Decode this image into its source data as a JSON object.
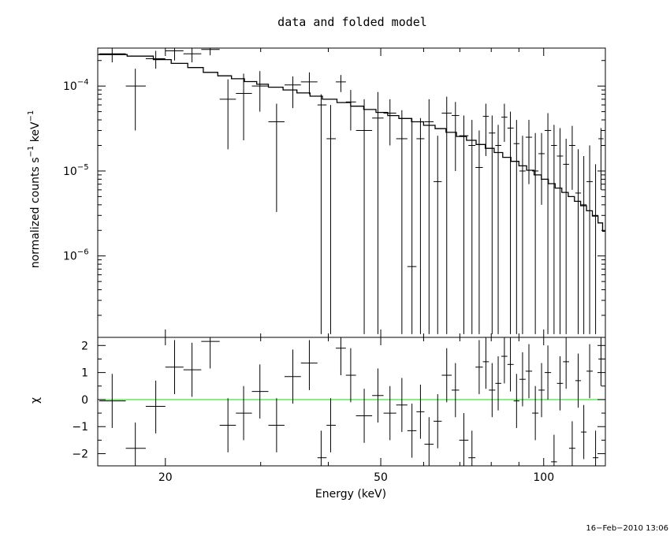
{
  "chart_data": [
    {
      "type": "scatter",
      "title": "data and folded model",
      "xlabel": "Energy (keV)",
      "ylabel": "normalized counts s-1 keV-1",
      "xscale": "log",
      "yscale": "log",
      "xlim": [
        15,
        130
      ],
      "ylim": [
        1.1e-07,
        0.00028
      ],
      "xticks": [
        {
          "v": 20,
          "label": "20"
        },
        {
          "v": 50,
          "label": "50"
        },
        {
          "v": 100,
          "label": "100"
        }
      ],
      "yticks": [
        {
          "v": 0.0001,
          "exp": "−4"
        },
        {
          "v": 1e-05,
          "exp": "−5"
        },
        {
          "v": 1e-06,
          "exp": "−6"
        }
      ],
      "data": [
        {
          "x": 15.95,
          "xl": 15.1,
          "xh": 16.9,
          "y": 0.00024,
          "yl": 0.00019,
          "yh": 0.00028
        },
        {
          "x": 17.6,
          "xl": 16.9,
          "xh": 18.4,
          "y": 0.0001,
          "yl": 3e-05,
          "yh": 0.00016
        },
        {
          "x": 19.2,
          "xl": 18.4,
          "xh": 20.0,
          "y": 0.00021,
          "yl": 0.00016,
          "yh": 0.00026
        },
        {
          "x": 20.8,
          "xl": 20.0,
          "xh": 21.6,
          "y": 0.00026,
          "yl": 0.0002,
          "yh": 0.00028
        },
        {
          "x": 22.4,
          "xl": 21.6,
          "xh": 23.3,
          "y": 0.00024,
          "yl": 0.00019,
          "yh": 0.00028
        },
        {
          "x": 24.2,
          "xl": 23.3,
          "xh": 25.2,
          "y": 0.00027,
          "yl": 0.00023,
          "yh": 0.00028
        },
        {
          "x": 26.1,
          "xl": 25.2,
          "xh": 27.0,
          "y": 7e-05,
          "yl": 1.8e-05,
          "yh": 0.00012
        },
        {
          "x": 27.9,
          "xl": 27.0,
          "xh": 28.9,
          "y": 8.2e-05,
          "yl": 2.3e-05,
          "yh": 0.00014
        },
        {
          "x": 29.9,
          "xl": 28.9,
          "xh": 31.0,
          "y": 0.0001,
          "yl": 5e-05,
          "yh": 0.00015
        },
        {
          "x": 32.1,
          "xl": 31.0,
          "xh": 33.2,
          "y": 3.8e-05,
          "yl": 3.3e-06,
          "yh": 6.2e-05
        },
        {
          "x": 34.4,
          "xl": 33.2,
          "xh": 35.6,
          "y": 0.000103,
          "yl": 5.5e-05,
          "yh": 0.00013
        },
        {
          "x": 36.9,
          "xl": 35.6,
          "xh": 38.2,
          "y": 0.000112,
          "yl": 8e-05,
          "yh": 0.000145
        },
        {
          "x": 38.8,
          "xl": 38.2,
          "xh": 39.7,
          "y": 6e-05,
          "yl": 1.2e-07,
          "yh": 8e-05
        },
        {
          "x": 40.4,
          "xl": 39.7,
          "xh": 41.3,
          "y": 2.4e-05,
          "yl": 1.2e-07,
          "yh": 6e-05
        },
        {
          "x": 42.2,
          "xl": 41.3,
          "xh": 43.1,
          "y": 0.000112,
          "yl": 8.5e-05,
          "yh": 0.000135
        },
        {
          "x": 44.0,
          "xl": 43.1,
          "xh": 45.0,
          "y": 6.5e-05,
          "yl": 3e-05,
          "yh": 9e-05
        },
        {
          "x": 46.6,
          "xl": 45.0,
          "xh": 48.2,
          "y": 3e-05,
          "yl": 1.2e-07,
          "yh": 7e-05
        },
        {
          "x": 49.4,
          "xl": 48.2,
          "xh": 50.6,
          "y": 4.2e-05,
          "yl": 1.2e-07,
          "yh": 8.5e-05
        },
        {
          "x": 52.0,
          "xl": 50.6,
          "xh": 53.4,
          "y": 4.8e-05,
          "yl": 2e-05,
          "yh": 7e-05
        },
        {
          "x": 54.7,
          "xl": 53.4,
          "xh": 56.0,
          "y": 2.4e-05,
          "yl": 1.2e-07,
          "yh": 5.2e-05
        },
        {
          "x": 57.1,
          "xl": 56.0,
          "xh": 58.2,
          "y": 7.5e-07,
          "yl": 1.2e-07,
          "yh": 4.2e-05
        },
        {
          "x": 59.2,
          "xl": 58.2,
          "xh": 60.2,
          "y": 2.4e-05,
          "yl": 1.2e-07,
          "yh": 4.2e-05
        },
        {
          "x": 61.4,
          "xl": 60.2,
          "xh": 62.6,
          "y": 3.8e-05,
          "yl": 1.2e-07,
          "yh": 7e-05
        },
        {
          "x": 63.7,
          "xl": 62.6,
          "xh": 64.8,
          "y": 7.5e-06,
          "yl": 1.2e-07,
          "yh": 2.6e-05
        },
        {
          "x": 66.2,
          "xl": 64.8,
          "xh": 67.6,
          "y": 4.8e-05,
          "yl": 1.2e-07,
          "yh": 7.5e-05
        },
        {
          "x": 68.7,
          "xl": 67.6,
          "xh": 69.8,
          "y": 4.5e-05,
          "yl": 1e-05,
          "yh": 6.5e-05
        },
        {
          "x": 71.2,
          "xl": 69.8,
          "xh": 72.6,
          "y": 2.6e-05,
          "yl": 1.2e-07,
          "yh": 4.5e-05
        },
        {
          "x": 73.7,
          "xl": 72.6,
          "xh": 74.8,
          "y": 2e-05,
          "yl": 1.2e-07,
          "yh": 4e-05
        },
        {
          "x": 76.0,
          "xl": 74.8,
          "xh": 77.2,
          "y": 1.1e-05,
          "yl": 1.2e-07,
          "yh": 3e-05
        },
        {
          "x": 78.2,
          "xl": 77.2,
          "xh": 79.2,
          "y": 4.4e-05,
          "yl": 1.5e-05,
          "yh": 6.2e-05
        },
        {
          "x": 80.3,
          "xl": 79.2,
          "xh": 81.4,
          "y": 2.8e-05,
          "yl": 1.2e-07,
          "yh": 4.5e-05
        },
        {
          "x": 82.4,
          "xl": 81.4,
          "xh": 83.5,
          "y": 2e-05,
          "yl": 1.2e-07,
          "yh": 3.5e-05
        },
        {
          "x": 84.6,
          "xl": 83.5,
          "xh": 85.7,
          "y": 4.3e-05,
          "yl": 2.2e-05,
          "yh": 6.2e-05
        },
        {
          "x": 86.8,
          "xl": 85.7,
          "xh": 88.0,
          "y": 3.2e-05,
          "yl": 1.2e-07,
          "yh": 5e-05
        },
        {
          "x": 89.1,
          "xl": 88.0,
          "xh": 90.2,
          "y": 2.1e-05,
          "yl": 1.2e-07,
          "yh": 4e-05
        },
        {
          "x": 91.4,
          "xl": 90.2,
          "xh": 92.6,
          "y": 1e-05,
          "yl": 1.2e-07,
          "yh": 2.6e-05
        },
        {
          "x": 93.9,
          "xl": 92.6,
          "xh": 95.2,
          "y": 2.5e-05,
          "yl": 7e-06,
          "yh": 4e-05
        },
        {
          "x": 96.5,
          "xl": 95.2,
          "xh": 97.8,
          "y": 1e-05,
          "yl": 1.2e-07,
          "yh": 2.8e-05
        },
        {
          "x": 99.1,
          "xl": 97.8,
          "xh": 100.4,
          "y": 1.6e-05,
          "yl": 4e-06,
          "yh": 2.8e-05
        },
        {
          "x": 101.8,
          "xl": 100.4,
          "xh": 103.2,
          "y": 3e-05,
          "yl": 1.2e-07,
          "yh": 4.8e-05
        },
        {
          "x": 104.5,
          "xl": 103.2,
          "xh": 105.8,
          "y": 2e-05,
          "yl": 1.2e-07,
          "yh": 3.5e-05
        },
        {
          "x": 107.2,
          "xl": 105.8,
          "xh": 108.6,
          "y": 1.5e-05,
          "yl": 1.2e-07,
          "yh": 3.2e-05
        },
        {
          "x": 110.0,
          "xl": 108.6,
          "xh": 111.4,
          "y": 1.2e-05,
          "yl": 1.2e-07,
          "yh": 2.4e-05
        },
        {
          "x": 112.9,
          "xl": 111.4,
          "xh": 114.4,
          "y": 2e-05,
          "yl": 6e-06,
          "yh": 3.4e-05
        },
        {
          "x": 115.8,
          "xl": 114.4,
          "xh": 117.2,
          "y": 5.5e-06,
          "yl": 1.2e-07,
          "yh": 1.8e-05
        },
        {
          "x": 118.6,
          "xl": 117.2,
          "xh": 120.0,
          "y": 4e-06,
          "yl": 1.2e-07,
          "yh": 1.5e-05
        },
        {
          "x": 121.6,
          "xl": 120.0,
          "xh": 123.2,
          "y": 7.5e-06,
          "yl": 1.2e-07,
          "yh": 2e-05
        },
        {
          "x": 124.7,
          "xl": 123.2,
          "xh": 126.2,
          "y": 3e-06,
          "yl": 1.2e-07,
          "yh": 1.2e-05
        },
        {
          "x": 127.6,
          "xl": 126.2,
          "xh": 129.0,
          "y": 2.4e-05,
          "yl": 6e-06,
          "yh": 3.2e-05
        }
      ],
      "model_step": [
        [
          15.0,
          0.000235
        ],
        [
          17.0,
          0.000225
        ],
        [
          19.0,
          0.000205
        ],
        [
          20.5,
          0.000185
        ],
        [
          22.0,
          0.000165
        ],
        [
          23.5,
          0.000145
        ],
        [
          25.0,
          0.000132
        ],
        [
          26.5,
          0.000122
        ],
        [
          28.0,
          0.000113
        ],
        [
          29.5,
          0.000105
        ],
        [
          31.0,
          9.7e-05
        ],
        [
          33.0,
          9e-05
        ],
        [
          35.0,
          8.3e-05
        ],
        [
          37.0,
          7.6e-05
        ],
        [
          39.0,
          7e-05
        ],
        [
          41.5,
          6.4e-05
        ],
        [
          44.0,
          5.8e-05
        ],
        [
          46.5,
          5.3e-05
        ],
        [
          49.0,
          4.9e-05
        ],
        [
          51.5,
          4.5e-05
        ],
        [
          54.0,
          4.15e-05
        ],
        [
          57.0,
          3.8e-05
        ],
        [
          60.0,
          3.45e-05
        ],
        [
          63.0,
          3.15e-05
        ],
        [
          66.0,
          2.85e-05
        ],
        [
          69.0,
          2.55e-05
        ],
        [
          72.0,
          2.3e-05
        ],
        [
          75.0,
          2.05e-05
        ],
        [
          78.0,
          1.85e-05
        ],
        [
          81.0,
          1.65e-05
        ],
        [
          84.0,
          1.45e-05
        ],
        [
          87.0,
          1.3e-05
        ],
        [
          90.0,
          1.15e-05
        ],
        [
          93.0,
          1.02e-05
        ],
        [
          96.0,
          9e-06
        ],
        [
          99.0,
          8e-06
        ],
        [
          102.0,
          7.1e-06
        ],
        [
          105.0,
          6.3e-06
        ],
        [
          108.0,
          5.6e-06
        ],
        [
          111.0,
          5e-06
        ],
        [
          114.0,
          4.4e-06
        ],
        [
          117.0,
          3.9e-06
        ],
        [
          120.0,
          3.4e-06
        ],
        [
          123.0,
          2.95e-06
        ],
        [
          126.0,
          2.45e-06
        ],
        [
          128.5,
          1.95e-06
        ],
        [
          130.0,
          1.95e-06
        ]
      ]
    },
    {
      "type": "scatter",
      "title": "",
      "xlabel": "Energy (keV)",
      "ylabel": "χ",
      "xscale": "log",
      "xlim": [
        15,
        130
      ],
      "ylim": [
        -2.45,
        2.3
      ],
      "xticks": [
        {
          "v": 20,
          "label": "20"
        },
        {
          "v": 50,
          "label": "50"
        },
        {
          "v": 100,
          "label": "100"
        }
      ],
      "yticks": [
        {
          "v": 2,
          "label": "2"
        },
        {
          "v": 1,
          "label": "1"
        },
        {
          "v": 0,
          "label": "0"
        },
        {
          "v": -1,
          "label": "−1"
        },
        {
          "v": -2,
          "label": "−2"
        }
      ],
      "reference_line": {
        "y": 0,
        "color": "#33dd33"
      },
      "data": [
        {
          "x": 15.95,
          "xl": 15.1,
          "xh": 16.9,
          "y": -0.05,
          "yl": -1.05,
          "yh": 0.95
        },
        {
          "x": 17.6,
          "xl": 16.9,
          "xh": 18.4,
          "y": -1.8,
          "yl": -2.45,
          "yh": -0.85
        },
        {
          "x": 19.2,
          "xl": 18.4,
          "xh": 20.0,
          "y": -0.25,
          "yl": -1.25,
          "yh": 0.7
        },
        {
          "x": 20.8,
          "xl": 20.0,
          "xh": 21.6,
          "y": 1.2,
          "yl": 0.2,
          "yh": 2.2
        },
        {
          "x": 22.4,
          "xl": 21.6,
          "xh": 23.3,
          "y": 1.1,
          "yl": 0.1,
          "yh": 2.1
        },
        {
          "x": 24.2,
          "xl": 23.3,
          "xh": 25.2,
          "y": 2.15,
          "yl": 1.15,
          "yh": 2.3
        },
        {
          "x": 26.1,
          "xl": 25.2,
          "xh": 27.0,
          "y": -0.95,
          "yl": -1.95,
          "yh": 0.05
        },
        {
          "x": 27.9,
          "xl": 27.0,
          "xh": 28.9,
          "y": -0.5,
          "yl": -1.5,
          "yh": 0.5
        },
        {
          "x": 29.9,
          "xl": 28.9,
          "xh": 31.0,
          "y": 0.3,
          "yl": -0.7,
          "yh": 1.3
        },
        {
          "x": 32.1,
          "xl": 31.0,
          "xh": 33.2,
          "y": -0.95,
          "yl": -1.95,
          "yh": 0.05
        },
        {
          "x": 34.4,
          "xl": 33.2,
          "xh": 35.6,
          "y": 0.85,
          "yl": -0.15,
          "yh": 1.85
        },
        {
          "x": 36.9,
          "xl": 35.6,
          "xh": 38.2,
          "y": 1.35,
          "yl": 0.35,
          "yh": 2.2
        },
        {
          "x": 38.8,
          "xl": 38.2,
          "xh": 39.7,
          "y": -2.15,
          "yl": -2.45,
          "yh": -1.15
        },
        {
          "x": 40.4,
          "xl": 39.7,
          "xh": 41.3,
          "y": -0.95,
          "yl": -1.95,
          "yh": 0.05
        },
        {
          "x": 42.2,
          "xl": 41.3,
          "xh": 43.1,
          "y": 1.9,
          "yl": 0.9,
          "yh": 2.3
        },
        {
          "x": 44.0,
          "xl": 43.1,
          "xh": 45.0,
          "y": 0.9,
          "yl": -0.1,
          "yh": 1.9
        },
        {
          "x": 46.6,
          "xl": 45.0,
          "xh": 48.2,
          "y": -0.6,
          "yl": -1.6,
          "yh": 0.4
        },
        {
          "x": 49.4,
          "xl": 48.2,
          "xh": 50.6,
          "y": 0.15,
          "yl": -0.85,
          "yh": 1.15
        },
        {
          "x": 52.0,
          "xl": 50.6,
          "xh": 53.4,
          "y": -0.5,
          "yl": -1.5,
          "yh": 0.5
        },
        {
          "x": 54.7,
          "xl": 53.4,
          "xh": 56.0,
          "y": -0.2,
          "yl": -1.2,
          "yh": 0.8
        },
        {
          "x": 57.1,
          "xl": 56.0,
          "xh": 58.2,
          "y": -1.15,
          "yl": -2.15,
          "yh": -0.15
        },
        {
          "x": 59.2,
          "xl": 58.2,
          "xh": 60.2,
          "y": -0.45,
          "yl": -1.45,
          "yh": 0.55
        },
        {
          "x": 61.4,
          "xl": 60.2,
          "xh": 62.6,
          "y": -1.65,
          "yl": -2.45,
          "yh": -0.65
        },
        {
          "x": 63.7,
          "xl": 62.6,
          "xh": 64.8,
          "y": -0.8,
          "yl": -1.8,
          "yh": 0.2
        },
        {
          "x": 66.2,
          "xl": 64.8,
          "xh": 67.6,
          "y": 0.9,
          "yl": -0.1,
          "yh": 1.9
        },
        {
          "x": 68.7,
          "xl": 67.6,
          "xh": 69.8,
          "y": 0.35,
          "yl": -0.65,
          "yh": 1.35
        },
        {
          "x": 71.2,
          "xl": 69.8,
          "xh": 72.6,
          "y": -1.5,
          "yl": -2.45,
          "yh": -0.5
        },
        {
          "x": 73.7,
          "xl": 72.6,
          "xh": 74.8,
          "y": -2.15,
          "yl": -2.45,
          "yh": -1.15
        },
        {
          "x": 76.0,
          "xl": 74.8,
          "xh": 77.2,
          "y": 1.2,
          "yl": 0.2,
          "yh": 2.2
        },
        {
          "x": 78.2,
          "xl": 77.2,
          "xh": 79.2,
          "y": 1.4,
          "yl": 0.4,
          "yh": 2.3
        },
        {
          "x": 80.3,
          "xl": 79.2,
          "xh": 81.4,
          "y": 0.35,
          "yl": -0.65,
          "yh": 1.35
        },
        {
          "x": 82.4,
          "xl": 81.4,
          "xh": 83.5,
          "y": 0.6,
          "yl": -0.4,
          "yh": 1.6
        },
        {
          "x": 84.6,
          "xl": 83.5,
          "xh": 85.7,
          "y": 1.6,
          "yl": 0.6,
          "yh": 2.3
        },
        {
          "x": 86.8,
          "xl": 85.7,
          "xh": 88.0,
          "y": 1.3,
          "yl": 0.3,
          "yh": 2.3
        },
        {
          "x": 89.1,
          "xl": 88.0,
          "xh": 90.2,
          "y": -0.05,
          "yl": -1.05,
          "yh": 0.95
        },
        {
          "x": 91.4,
          "xl": 90.2,
          "xh": 92.6,
          "y": 0.75,
          "yl": -0.25,
          "yh": 1.75
        },
        {
          "x": 93.9,
          "xl": 92.6,
          "xh": 95.2,
          "y": 1.05,
          "yl": 0.05,
          "yh": 2.05
        },
        {
          "x": 96.5,
          "xl": 95.2,
          "xh": 97.8,
          "y": -0.5,
          "yl": -1.5,
          "yh": 0.5
        },
        {
          "x": 99.1,
          "xl": 97.8,
          "xh": 100.4,
          "y": 0.35,
          "yl": -0.65,
          "yh": 1.35
        },
        {
          "x": 101.8,
          "xl": 100.4,
          "xh": 103.2,
          "y": 1.0,
          "yl": 0.0,
          "yh": 2.0
        },
        {
          "x": 104.5,
          "xl": 103.2,
          "xh": 105.8,
          "y": -2.3,
          "yl": -2.45,
          "yh": -1.3
        },
        {
          "x": 107.2,
          "xl": 105.8,
          "xh": 108.6,
          "y": 0.6,
          "yl": -0.4,
          "yh": 1.6
        },
        {
          "x": 110.0,
          "xl": 108.6,
          "xh": 111.4,
          "y": 1.4,
          "yl": 0.4,
          "yh": 2.3
        },
        {
          "x": 112.9,
          "xl": 111.4,
          "xh": 114.4,
          "y": -1.8,
          "yl": -2.45,
          "yh": -0.8
        },
        {
          "x": 115.8,
          "xl": 114.4,
          "xh": 117.2,
          "y": 0.7,
          "yl": -0.3,
          "yh": 1.7
        },
        {
          "x": 118.6,
          "xl": 117.2,
          "xh": 120.0,
          "y": -1.2,
          "yl": -2.2,
          "yh": -0.2
        },
        {
          "x": 121.6,
          "xl": 120.0,
          "xh": 123.2,
          "y": 1.05,
          "yl": 0.05,
          "yh": 2.05
        },
        {
          "x": 124.7,
          "xl": 123.2,
          "xh": 126.2,
          "y": -2.15,
          "yl": -2.45,
          "yh": -1.15
        },
        {
          "x": 127.6,
          "xl": 126.2,
          "xh": 129.0,
          "y": 1.5,
          "yl": 0.5,
          "yh": 2.3
        }
      ]
    }
  ],
  "footer": {
    "timestamp": "16−Feb−2010 13:06"
  }
}
